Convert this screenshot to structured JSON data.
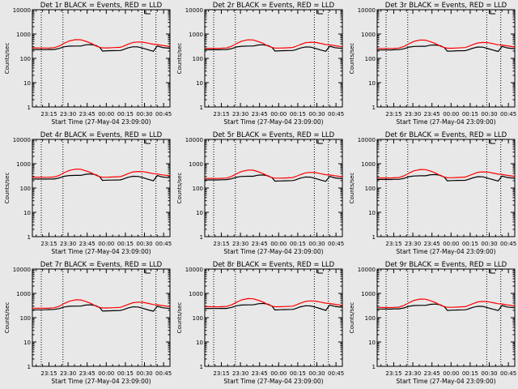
{
  "page": {
    "background": "#e8e8e8"
  },
  "chart_data": {
    "type": "line",
    "layout": "3x3 grid of panels",
    "xlabel": "Start Time (27-May-04 23:09:00)",
    "ylabel": "Counts/sec",
    "x_ticks": [
      "23:15",
      "23:30",
      "23:45",
      "00:00",
      "00:15",
      "00:30",
      "00:45"
    ],
    "x_tick_minutes": [
      6,
      21,
      36,
      51,
      66,
      81,
      96
    ],
    "xlim_minutes": [
      -7,
      101
    ],
    "y_scale": "log",
    "ylim": [
      1,
      10000
    ],
    "y_ticks": [
      "1",
      "10",
      "100",
      "1000",
      "10000"
    ],
    "y_tick_values": [
      1,
      10,
      100,
      1000,
      10000
    ],
    "grid": false,
    "series_colors": {
      "events": "#000000",
      "lld": "#ff0000"
    },
    "panels": [
      {
        "title": "Det 1r BLACK = Events, RED = LLD",
        "vlines_minutes": [
          0,
          17,
          79,
          90
        ],
        "events": {
          "x": [
            -7,
            4,
            6,
            10,
            14,
            18,
            22,
            27,
            31,
            35,
            39,
            43,
            46,
            48,
            52,
            56,
            62,
            64,
            68,
            72,
            76,
            80,
            84,
            88,
            91,
            95,
            101
          ],
          "y": [
            230,
            228,
            232,
            230,
            255,
            300,
            318,
            320,
            320,
            360,
            370,
            340,
            280,
            200,
            205,
            208,
            210,
            225,
            270,
            300,
            295,
            260,
            225,
            195,
            320,
            280,
            260
          ]
        },
        "lld": {
          "x": [
            -7,
            4,
            6,
            10,
            14,
            18,
            22,
            27,
            31,
            35,
            39,
            43,
            46,
            48,
            52,
            56,
            62,
            64,
            68,
            72,
            76,
            80,
            84,
            88,
            91,
            95,
            101
          ],
          "y": [
            270,
            265,
            268,
            275,
            320,
            420,
            520,
            590,
            580,
            500,
            420,
            320,
            285,
            270,
            270,
            275,
            285,
            310,
            380,
            450,
            470,
            460,
            420,
            380,
            370,
            340,
            310
          ]
        }
      },
      {
        "title": "Det 2r BLACK = Events, RED = LLD",
        "vlines_minutes": [
          0,
          17,
          79,
          90
        ],
        "events": {
          "x": [
            -7,
            4,
            6,
            10,
            14,
            18,
            22,
            27,
            31,
            35,
            39,
            43,
            46,
            48,
            52,
            56,
            62,
            64,
            68,
            72,
            76,
            80,
            84,
            88,
            91,
            95,
            101
          ],
          "y": [
            225,
            225,
            228,
            230,
            250,
            295,
            315,
            320,
            320,
            355,
            360,
            330,
            275,
            200,
            205,
            208,
            210,
            222,
            265,
            295,
            290,
            255,
            220,
            195,
            315,
            275,
            255
          ]
        },
        "lld": {
          "x": [
            -7,
            4,
            6,
            10,
            14,
            18,
            22,
            27,
            31,
            35,
            39,
            43,
            46,
            48,
            52,
            56,
            62,
            64,
            68,
            72,
            76,
            80,
            84,
            88,
            91,
            95,
            101
          ],
          "y": [
            260,
            258,
            262,
            268,
            315,
            410,
            510,
            580,
            570,
            490,
            410,
            315,
            280,
            265,
            265,
            270,
            280,
            305,
            370,
            440,
            460,
            450,
            410,
            370,
            360,
            330,
            300
          ]
        }
      },
      {
        "title": "Det 3r BLACK = Events, RED = LLD",
        "vlines_minutes": [
          0,
          17,
          79,
          90
        ],
        "events": {
          "x": [
            -7,
            4,
            6,
            10,
            14,
            18,
            22,
            27,
            31,
            35,
            39,
            43,
            46,
            48,
            52,
            56,
            62,
            64,
            68,
            72,
            76,
            80,
            84,
            88,
            91,
            95,
            101
          ],
          "y": [
            220,
            222,
            225,
            228,
            248,
            290,
            310,
            315,
            315,
            350,
            355,
            325,
            270,
            198,
            200,
            205,
            208,
            220,
            262,
            292,
            288,
            252,
            218,
            192,
            310,
            270,
            250
          ]
        },
        "lld": {
          "x": [
            -7,
            4,
            6,
            10,
            14,
            18,
            22,
            27,
            31,
            35,
            39,
            43,
            46,
            48,
            52,
            56,
            62,
            64,
            68,
            72,
            76,
            80,
            84,
            88,
            91,
            95,
            101
          ],
          "y": [
            255,
            255,
            258,
            265,
            310,
            400,
            500,
            570,
            560,
            480,
            400,
            310,
            278,
            262,
            262,
            268,
            278,
            300,
            365,
            430,
            450,
            440,
            400,
            360,
            352,
            325,
            295
          ]
        }
      },
      {
        "title": "Det 4r BLACK = Events, RED = LLD",
        "vlines_minutes": [
          0,
          17,
          79,
          90
        ],
        "events": {
          "x": [
            -7,
            4,
            6,
            10,
            14,
            18,
            22,
            27,
            31,
            35,
            39,
            43,
            46,
            48,
            52,
            56,
            62,
            64,
            68,
            72,
            76,
            80,
            84,
            88,
            91,
            95,
            101
          ],
          "y": [
            235,
            232,
            236,
            235,
            260,
            305,
            325,
            330,
            330,
            370,
            380,
            350,
            285,
            205,
            210,
            212,
            215,
            230,
            275,
            305,
            300,
            265,
            228,
            198,
            325,
            285,
            265
          ]
        },
        "lld": {
          "x": [
            -7,
            4,
            6,
            10,
            14,
            18,
            22,
            27,
            31,
            35,
            39,
            43,
            46,
            48,
            52,
            56,
            62,
            64,
            68,
            72,
            76,
            80,
            84,
            88,
            91,
            95,
            101
          ],
          "y": [
            280,
            275,
            278,
            285,
            330,
            430,
            530,
            600,
            590,
            510,
            430,
            330,
            292,
            278,
            278,
            283,
            292,
            318,
            390,
            460,
            480,
            470,
            430,
            390,
            378,
            348,
            318
          ]
        }
      },
      {
        "title": "Det 5r BLACK = Events, RED = LLD",
        "vlines_minutes": [
          0,
          17,
          79,
          90
        ],
        "events": {
          "x": [
            -7,
            4,
            6,
            10,
            14,
            18,
            22,
            27,
            31,
            35,
            39,
            43,
            46,
            48,
            52,
            56,
            62,
            64,
            68,
            72,
            76,
            80,
            84,
            88,
            91,
            95,
            101
          ],
          "y": [
            215,
            215,
            218,
            222,
            240,
            280,
            300,
            305,
            305,
            340,
            345,
            315,
            262,
            192,
            195,
            198,
            202,
            214,
            255,
            285,
            280,
            245,
            212,
            188,
            300,
            262,
            242
          ]
        },
        "lld": {
          "x": [
            -7,
            4,
            6,
            10,
            14,
            18,
            22,
            27,
            31,
            35,
            39,
            43,
            46,
            48,
            52,
            56,
            62,
            64,
            68,
            72,
            76,
            80,
            84,
            88,
            91,
            95,
            101
          ],
          "y": [
            250,
            248,
            252,
            258,
            300,
            390,
            480,
            550,
            540,
            465,
            390,
            300,
            268,
            255,
            255,
            260,
            270,
            292,
            355,
            420,
            440,
            430,
            390,
            352,
            345,
            318,
            290
          ]
        }
      },
      {
        "title": "Det 6r BLACK = Events, RED = LLD",
        "vlines_minutes": [
          0,
          17,
          79,
          90
        ],
        "events": {
          "x": [
            -7,
            4,
            6,
            10,
            14,
            18,
            22,
            27,
            31,
            35,
            39,
            43,
            46,
            48,
            52,
            56,
            62,
            64,
            68,
            72,
            76,
            80,
            84,
            88,
            91,
            95,
            101
          ],
          "y": [
            225,
            224,
            228,
            228,
            250,
            292,
            312,
            318,
            318,
            352,
            358,
            328,
            272,
            198,
            202,
            205,
            208,
            220,
            262,
            292,
            288,
            254,
            220,
            194,
            312,
            272,
            252
          ]
        },
        "lld": {
          "x": [
            -7,
            4,
            6,
            10,
            14,
            18,
            22,
            27,
            31,
            35,
            39,
            43,
            46,
            48,
            52,
            56,
            62,
            64,
            68,
            72,
            76,
            80,
            84,
            88,
            91,
            95,
            101
          ],
          "y": [
            262,
            260,
            264,
            270,
            316,
            412,
            512,
            582,
            572,
            492,
            412,
            316,
            282,
            266,
            266,
            272,
            282,
            306,
            372,
            442,
            462,
            452,
            412,
            372,
            362,
            332,
            302
          ]
        }
      },
      {
        "title": "Det 7r BLACK = Events, RED = LLD",
        "vlines_minutes": [
          0,
          17,
          79,
          90
        ],
        "events": {
          "x": [
            -7,
            4,
            6,
            10,
            14,
            18,
            22,
            27,
            31,
            35,
            39,
            43,
            46,
            48,
            52,
            56,
            62,
            64,
            68,
            72,
            76,
            80,
            84,
            88,
            91,
            95,
            101
          ],
          "y": [
            210,
            212,
            215,
            218,
            236,
            275,
            295,
            300,
            300,
            332,
            338,
            308,
            256,
            188,
            190,
            194,
            198,
            210,
            250,
            280,
            275,
            240,
            208,
            185,
            295,
            258,
            238
          ]
        },
        "lld": {
          "x": [
            -7,
            4,
            6,
            10,
            14,
            18,
            22,
            27,
            31,
            35,
            39,
            43,
            46,
            48,
            52,
            56,
            62,
            64,
            68,
            72,
            76,
            80,
            84,
            88,
            91,
            95,
            101
          ],
          "y": [
            245,
            244,
            248,
            255,
            296,
            385,
            475,
            545,
            535,
            460,
            385,
            296,
            265,
            252,
            252,
            258,
            266,
            288,
            350,
            415,
            435,
            425,
            385,
            348,
            340,
            314,
            286
          ]
        }
      },
      {
        "title": "Det 8r BLACK = Events, RED = LLD",
        "vlines_minutes": [
          0,
          17,
          79,
          90
        ],
        "events": {
          "x": [
            -7,
            4,
            6,
            10,
            14,
            18,
            22,
            27,
            31,
            35,
            39,
            43,
            46,
            48,
            52,
            56,
            62,
            64,
            68,
            72,
            76,
            80,
            84,
            88,
            91,
            95,
            101
          ],
          "y": [
            240,
            238,
            242,
            240,
            265,
            310,
            330,
            335,
            335,
            375,
            385,
            355,
            290,
            208,
            212,
            215,
            218,
            234,
            280,
            310,
            305,
            270,
            232,
            200,
            330,
            290,
            270
          ]
        },
        "lld": {
          "x": [
            -7,
            4,
            6,
            10,
            14,
            18,
            22,
            27,
            31,
            35,
            39,
            43,
            46,
            48,
            52,
            56,
            62,
            64,
            68,
            72,
            76,
            80,
            84,
            88,
            91,
            95,
            101
          ],
          "y": [
            285,
            280,
            284,
            290,
            335,
            438,
            540,
            610,
            600,
            520,
            438,
            335,
            298,
            282,
            282,
            288,
            298,
            324,
            396,
            468,
            488,
            478,
            438,
            396,
            384,
            354,
            322
          ]
        }
      },
      {
        "title": "Det 9r BLACK = Events, RED = LLD",
        "vlines_minutes": [
          0,
          17,
          79,
          90
        ],
        "events": {
          "x": [
            -7,
            4,
            6,
            10,
            14,
            18,
            22,
            27,
            31,
            35,
            39,
            43,
            46,
            48,
            52,
            56,
            62,
            64,
            68,
            72,
            76,
            80,
            84,
            88,
            91,
            95,
            101
          ],
          "y": [
            228,
            226,
            230,
            230,
            252,
            296,
            316,
            320,
            320,
            356,
            362,
            332,
            276,
            200,
            204,
            207,
            210,
            222,
            266,
            296,
            291,
            256,
            222,
            196,
            316,
            276,
            256
          ]
        },
        "lld": {
          "x": [
            -7,
            4,
            6,
            10,
            14,
            18,
            22,
            27,
            31,
            35,
            39,
            43,
            46,
            48,
            52,
            56,
            62,
            64,
            68,
            72,
            76,
            80,
            84,
            88,
            91,
            95,
            101
          ],
          "y": [
            266,
            262,
            266,
            272,
            318,
            415,
            515,
            585,
            575,
            495,
            415,
            318,
            284,
            268,
            268,
            274,
            284,
            308,
            375,
            445,
            465,
            455,
            415,
            375,
            365,
            335,
            305
          ]
        }
      }
    ]
  }
}
